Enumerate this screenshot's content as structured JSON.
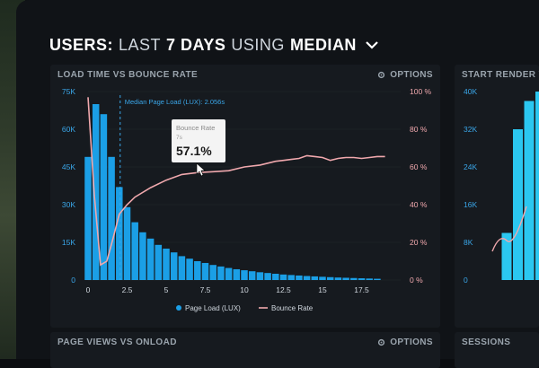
{
  "dashboard": {
    "title_users": "USERS:",
    "title_last": "LAST",
    "title_days": "7 DAYS",
    "title_using": "USING",
    "title_median": "MEDIAN"
  },
  "panels": {
    "main": {
      "title": "LOAD TIME VS BOUNCE RATE",
      "options": "OPTIONS"
    },
    "right": {
      "title": "START RENDER V"
    },
    "bottom_left": {
      "title": "PAGE VIEWS VS ONLOAD",
      "options": "OPTIONS"
    },
    "bottom_right": {
      "title": "SESSIONS"
    }
  },
  "colors": {
    "bar": "#1b9fe6",
    "line": "#f0a8ad",
    "accent_median": "#3aa6e8",
    "right_bar": "#2bc7f0"
  },
  "chart_data": [
    {
      "type": "bar",
      "title": "LOAD TIME VS BOUNCE RATE",
      "x_ticks": [
        "0",
        "2.5",
        "5",
        "7.5",
        "10",
        "12.5",
        "15",
        "17.5"
      ],
      "y_left_ticks": [
        "0",
        "15K",
        "30K",
        "45K",
        "60K",
        "75K"
      ],
      "y_right_ticks": [
        "0 %",
        "20 %",
        "40 %",
        "60 %",
        "80 %",
        "100 %"
      ],
      "xlim": [
        0,
        20
      ],
      "ylim_left": [
        0,
        75000
      ],
      "ylim_right": [
        0,
        100
      ],
      "bar_width": 0.5,
      "series": [
        {
          "name": "Page Load (LUX)",
          "axis": "left",
          "x": [
            0,
            0.5,
            1,
            1.5,
            2,
            2.5,
            3,
            3.5,
            4,
            4.5,
            5,
            5.5,
            6,
            6.5,
            7,
            7.5,
            8,
            8.5,
            9,
            9.5,
            10,
            10.5,
            11,
            11.5,
            12,
            12.5,
            13,
            13.5,
            14,
            14.5,
            15,
            15.5,
            16,
            16.5,
            17,
            17.5,
            18,
            18.5
          ],
          "values": [
            49000,
            70000,
            66000,
            49000,
            37000,
            29000,
            23000,
            19000,
            16500,
            14000,
            12500,
            11000,
            9500,
            8500,
            7500,
            6800,
            6000,
            5400,
            4800,
            4300,
            3900,
            3500,
            3100,
            2800,
            2500,
            2200,
            2000,
            1800,
            1600,
            1450,
            1300,
            1150,
            1000,
            900,
            800,
            700,
            600,
            500
          ]
        },
        {
          "name": "Bounce Rate",
          "axis": "right",
          "x": [
            0,
            0.4,
            0.8,
            1.2,
            1.6,
            2,
            2.5,
            3,
            4,
            5,
            6,
            7,
            8,
            9,
            10,
            11,
            12,
            12.5,
            13,
            13.5,
            14,
            14.5,
            15,
            15.5,
            16,
            16.5,
            17,
            17.5,
            18,
            18.5,
            19
          ],
          "values": [
            97,
            45,
            8,
            10,
            22,
            35,
            40,
            44,
            49,
            53,
            56,
            57,
            57.5,
            58,
            60,
            61,
            63,
            63.5,
            64,
            64.5,
            66,
            65.5,
            65,
            63.5,
            64.5,
            65,
            65,
            64.5,
            65,
            65.5,
            65.5
          ]
        }
      ],
      "median_marker": {
        "x": 2.056,
        "label": "Median Page Load (LUX): 2.056s"
      },
      "tooltip": {
        "label": "Bounce Rate",
        "sub": "7s",
        "value": "57.1%"
      },
      "legend": [
        "Page Load (LUX)",
        "Bounce Rate"
      ],
      "legend_position": "bottom"
    },
    {
      "type": "bar",
      "title": "START RENDER V",
      "y_ticks": [
        "0",
        "8K",
        "16K",
        "24K",
        "32K",
        "40K"
      ],
      "ylim": [
        0,
        40000
      ],
      "values": [
        0,
        10000,
        32000,
        38000,
        40000
      ]
    }
  ]
}
